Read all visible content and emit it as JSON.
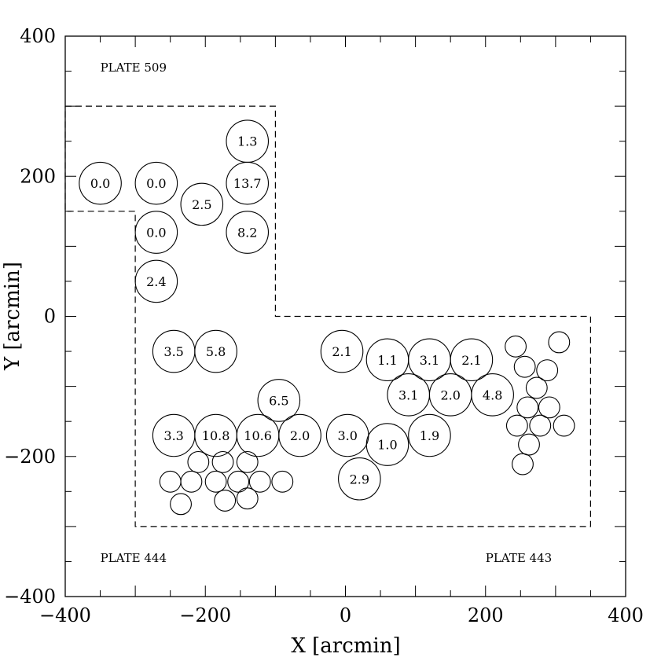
{
  "chart_data": {
    "type": "scatter",
    "xlabel": "X [arcmin]",
    "ylabel": "Y [arcmin]",
    "xlim": [
      -400,
      400
    ],
    "ylim": [
      -400,
      400
    ],
    "x_ticks": [
      -400,
      -200,
      0,
      200,
      400
    ],
    "y_ticks": [
      -400,
      -200,
      0,
      200,
      400
    ],
    "x_tick_labels": [
      "−400",
      "−200",
      "0",
      "200",
      "400"
    ],
    "y_tick_labels": [
      "−400",
      "−200",
      "0",
      "200",
      "400"
    ],
    "grid": false,
    "legend": "none",
    "plate_labels": [
      {
        "text": "PLATE 509",
        "x": -350,
        "y": 355
      },
      {
        "text": "PLATE 444",
        "x": -350,
        "y": -345
      },
      {
        "text": "PLATE 443",
        "x": 200,
        "y": -345
      }
    ],
    "boundary": [
      [
        -400,
        300
      ],
      [
        -100,
        300
      ],
      [
        -100,
        0
      ],
      [
        350,
        0
      ],
      [
        350,
        -300
      ],
      [
        -300,
        -300
      ],
      [
        -300,
        150
      ],
      [
        -400,
        150
      ],
      [
        -400,
        300
      ]
    ],
    "labeled_fields": [
      {
        "x": -350,
        "y": 190,
        "value": "0.0"
      },
      {
        "x": -270,
        "y": 190,
        "value": "0.0"
      },
      {
        "x": -270,
        "y": 120,
        "value": "0.0"
      },
      {
        "x": -205,
        "y": 160,
        "value": "2.5"
      },
      {
        "x": -140,
        "y": 250,
        "value": "1.3"
      },
      {
        "x": -140,
        "y": 190,
        "value": "13.7"
      },
      {
        "x": -140,
        "y": 120,
        "value": "8.2"
      },
      {
        "x": -270,
        "y": 50,
        "value": "2.4"
      },
      {
        "x": -245,
        "y": -50,
        "value": "3.5"
      },
      {
        "x": -185,
        "y": -50,
        "value": "5.8"
      },
      {
        "x": -95,
        "y": -120,
        "value": "6.5"
      },
      {
        "x": -245,
        "y": -170,
        "value": "3.3"
      },
      {
        "x": -185,
        "y": -170,
        "value": "10.8"
      },
      {
        "x": -125,
        "y": -170,
        "value": "10.6"
      },
      {
        "x": -65,
        "y": -170,
        "value": "2.0"
      },
      {
        "x": -5,
        "y": -50,
        "value": "2.1"
      },
      {
        "x": 60,
        "y": -62,
        "value": "1.1"
      },
      {
        "x": 120,
        "y": -62,
        "value": "3.1"
      },
      {
        "x": 180,
        "y": -62,
        "value": "2.1"
      },
      {
        "x": 90,
        "y": -112,
        "value": "3.1"
      },
      {
        "x": 150,
        "y": -112,
        "value": "2.0"
      },
      {
        "x": 210,
        "y": -112,
        "value": "4.8"
      },
      {
        "x": 3,
        "y": -170,
        "value": "3.0"
      },
      {
        "x": 60,
        "y": -183,
        "value": "1.0"
      },
      {
        "x": 120,
        "y": -170,
        "value": "1.9"
      },
      {
        "x": 20,
        "y": -232,
        "value": "2.9"
      }
    ],
    "labeled_field_radius": 30,
    "small_fields": [
      [
        -210,
        -208
      ],
      [
        -175,
        -208
      ],
      [
        -140,
        -208
      ],
      [
        -250,
        -236
      ],
      [
        -220,
        -236
      ],
      [
        -185,
        -236
      ],
      [
        -153,
        -236
      ],
      [
        -122,
        -236
      ],
      [
        -90,
        -236
      ],
      [
        -235,
        -268
      ],
      [
        -172,
        -263
      ],
      [
        -140,
        -260
      ],
      [
        243,
        -43
      ],
      [
        305,
        -37
      ],
      [
        256,
        -72
      ],
      [
        288,
        -77
      ],
      [
        273,
        -102
      ],
      [
        260,
        -130
      ],
      [
        291,
        -130
      ],
      [
        245,
        -156
      ],
      [
        278,
        -156
      ],
      [
        312,
        -156
      ],
      [
        262,
        -183
      ],
      [
        253,
        -211
      ]
    ],
    "small_field_radius": 15
  }
}
